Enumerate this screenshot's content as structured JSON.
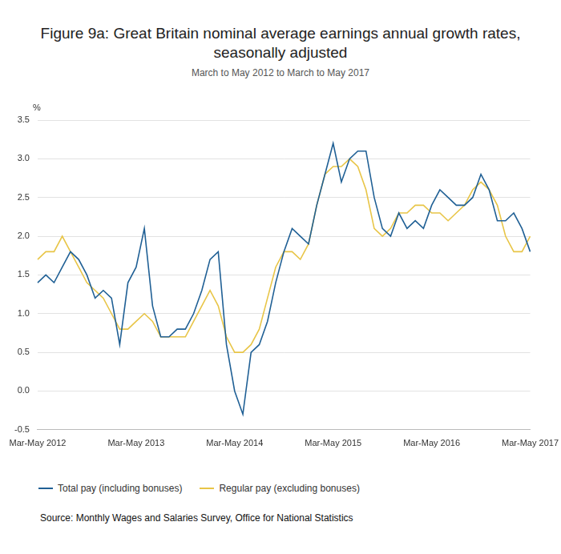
{
  "chart_data": {
    "type": "line",
    "title": "Figure 9a: Great Britain nominal average earnings annual growth rates, seasonally adjusted",
    "subtitle": "March to May 2012 to March to May 2017",
    "ylabel": "%",
    "source": "Source: Monthly Wages and Salaries Survey, Office for National Statistics",
    "categories": [
      "Mar-May 2012",
      null,
      null,
      null,
      null,
      null,
      null,
      null,
      null,
      null,
      null,
      null,
      "Mar-May 2013",
      null,
      null,
      null,
      null,
      null,
      null,
      null,
      null,
      null,
      null,
      null,
      "Mar-May 2014",
      null,
      null,
      null,
      null,
      null,
      null,
      null,
      null,
      null,
      null,
      null,
      "Mar-May 2015",
      null,
      null,
      null,
      null,
      null,
      null,
      null,
      null,
      null,
      null,
      null,
      "Mar-May 2016",
      null,
      null,
      null,
      null,
      null,
      null,
      null,
      null,
      null,
      null,
      null,
      "Mar-May 2017"
    ],
    "series": [
      {
        "name": "Total pay (including bonuses)",
        "color": "#206095",
        "values": [
          1.4,
          1.5,
          1.4,
          1.6,
          1.8,
          1.7,
          1.5,
          1.2,
          1.3,
          1.2,
          0.6,
          1.4,
          1.6,
          2.1,
          1.1,
          0.7,
          0.7,
          0.8,
          0.8,
          1.0,
          1.3,
          1.7,
          1.8,
          0.6,
          0.0,
          -0.3,
          0.5,
          0.6,
          0.9,
          1.4,
          1.8,
          2.1,
          2.0,
          1.9,
          2.4,
          2.8,
          3.2,
          2.7,
          3.0,
          3.1,
          3.1,
          2.5,
          2.1,
          2.0,
          2.3,
          2.1,
          2.2,
          2.1,
          2.4,
          2.6,
          2.5,
          2.4,
          2.4,
          2.5,
          2.8,
          2.6,
          2.2,
          2.2,
          2.3,
          2.1,
          1.8
        ]
      },
      {
        "name": "Regular pay (excluding bonuses)",
        "color": "#e8c547",
        "values": [
          1.7,
          1.8,
          1.8,
          2.0,
          1.8,
          1.6,
          1.4,
          1.3,
          1.2,
          1.0,
          0.8,
          0.8,
          0.9,
          1.0,
          0.9,
          0.7,
          0.7,
          0.7,
          0.7,
          0.9,
          1.1,
          1.3,
          1.1,
          0.7,
          0.5,
          0.5,
          0.6,
          0.8,
          1.2,
          1.6,
          1.8,
          1.8,
          1.7,
          1.9,
          2.4,
          2.8,
          2.9,
          2.9,
          3.0,
          2.9,
          2.6,
          2.1,
          2.0,
          2.1,
          2.3,
          2.3,
          2.4,
          2.4,
          2.3,
          2.3,
          2.2,
          2.3,
          2.4,
          2.6,
          2.7,
          2.6,
          2.4,
          2.0,
          1.8,
          1.8,
          2.0
        ]
      }
    ],
    "ylim": [
      -0.5,
      3.5
    ],
    "yticks": [
      -0.5,
      {
        "value": 0,
        "label": "0.0"
      },
      0.5,
      {
        "value": 1,
        "label": "1.0"
      },
      1.5,
      {
        "value": 2,
        "label": "2.0"
      },
      2.5,
      {
        "value": 3,
        "label": "3.0"
      },
      3.5
    ],
    "grid": true,
    "legend": "bottom-left"
  }
}
